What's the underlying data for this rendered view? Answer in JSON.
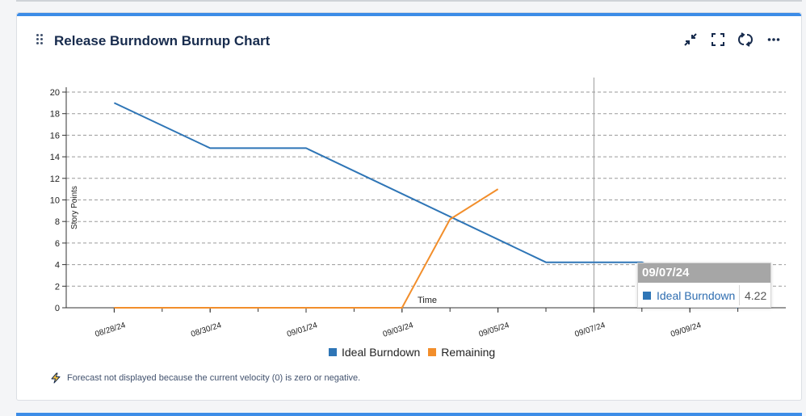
{
  "card": {
    "title": "Release Burndown Burnup Chart",
    "icons": [
      "drag-handle-icon",
      "minimize-icon",
      "fullscreen-icon",
      "refresh-icon",
      "more-icon"
    ]
  },
  "chart_data": {
    "type": "line",
    "title": "",
    "xlabel": "Time",
    "ylabel": "Story Points",
    "ylim": [
      0,
      20
    ],
    "yticks": [
      0,
      2,
      4,
      6,
      8,
      10,
      12,
      14,
      16,
      18,
      20
    ],
    "xlim": [
      "2024-08-27",
      "2024-09-11"
    ],
    "xtick_labels": [
      "08/28/24",
      "08/30/24",
      "09/01/24",
      "09/03/24",
      "09/05/24",
      "09/07/24",
      "09/09/24"
    ],
    "xtick_dates": [
      "2024-08-28",
      "2024-08-30",
      "2024-09-01",
      "2024-09-03",
      "2024-09-05",
      "2024-09-07",
      "2024-09-09"
    ],
    "grid": true,
    "legend_position": "bottom-center",
    "crosshair_date": "2024-09-07",
    "series": [
      {
        "name": "Ideal Burndown",
        "color": "#2e75b6",
        "points": [
          {
            "x": "2024-08-28",
            "y": 19.0
          },
          {
            "x": "2024-08-30",
            "y": 14.8
          },
          {
            "x": "2024-09-01",
            "y": 14.8
          },
          {
            "x": "2024-09-06",
            "y": 4.22
          },
          {
            "x": "2024-09-08",
            "y": 4.22
          },
          {
            "x": "2024-09-10",
            "y": 0
          }
        ]
      },
      {
        "name": "Remaining",
        "color": "#f28e2b",
        "points": [
          {
            "x": "2024-08-28",
            "y": 0
          },
          {
            "x": "2024-09-03",
            "y": 0
          },
          {
            "x": "2024-09-04",
            "y": 8.2
          },
          {
            "x": "2024-09-05",
            "y": 11.0
          }
        ]
      }
    ]
  },
  "tooltip": {
    "date": "09/07/24",
    "series": "Ideal Burndown",
    "value": "4.22"
  },
  "footer": {
    "icon": "lightning-icon",
    "text": "Forecast not displayed because the current velocity (0) is zero or negative."
  }
}
